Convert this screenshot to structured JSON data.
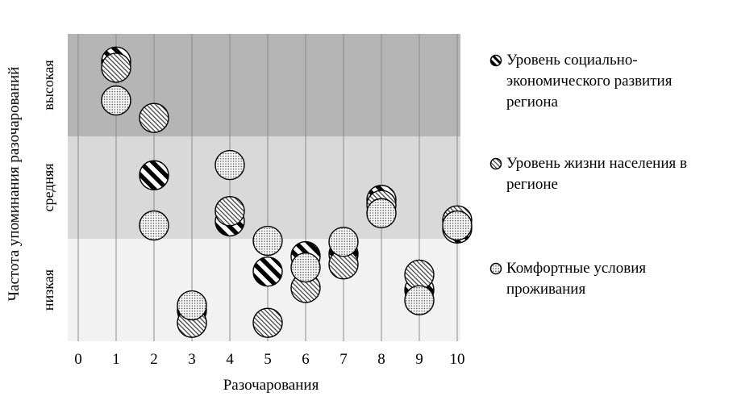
{
  "chart_data": {
    "type": "scatter",
    "xlabel": "Разочарования",
    "ylabel": "Частота упоминания разочарований",
    "xlim": [
      0,
      10
    ],
    "x_ticks": [
      "0",
      "1",
      "2",
      "3",
      "4",
      "5",
      "6",
      "7",
      "8",
      "9",
      "10"
    ],
    "bands": [
      {
        "label": "высокая",
        "range": [
          2,
          3
        ],
        "color": "#b5b5b5"
      },
      {
        "label": "средняя",
        "range": [
          1,
          2
        ],
        "color": "#d9d9d9"
      },
      {
        "label": "низкая",
        "range": [
          0,
          1
        ],
        "color": "#f2f2f2"
      }
    ],
    "grid": "vertical",
    "legend_position": "right",
    "series": [
      {
        "name": "Уровень социально-экономического развития региона",
        "pattern": "diagonal-stripes",
        "points": [
          {
            "x": 1,
            "y": 2.73
          },
          {
            "x": 2,
            "y": 1.62
          },
          {
            "x": 3,
            "y": 0.3
          },
          {
            "x": 4,
            "y": 1.17
          },
          {
            "x": 5,
            "y": 0.68
          },
          {
            "x": 6,
            "y": 0.83
          },
          {
            "x": 7,
            "y": 0.85
          },
          {
            "x": 8,
            "y": 1.38
          },
          {
            "x": 9,
            "y": 0.5
          },
          {
            "x": 10,
            "y": 1.1
          }
        ]
      },
      {
        "name": "Уровень жизни населения в регионе",
        "pattern": "fine-hatching",
        "points": [
          {
            "x": 1,
            "y": 2.67
          },
          {
            "x": 2,
            "y": 2.18
          },
          {
            "x": 3,
            "y": 0.18
          },
          {
            "x": 4,
            "y": 1.27
          },
          {
            "x": 5,
            "y": 0.18
          },
          {
            "x": 6,
            "y": 0.52
          },
          {
            "x": 7,
            "y": 0.75
          },
          {
            "x": 8,
            "y": 1.33
          },
          {
            "x": 9,
            "y": 0.65
          },
          {
            "x": 10,
            "y": 1.18
          }
        ]
      },
      {
        "name": "Комфортные условия проживания",
        "pattern": "dots",
        "points": [
          {
            "x": 1,
            "y": 2.35
          },
          {
            "x": 2,
            "y": 1.13
          },
          {
            "x": 3,
            "y": 0.35
          },
          {
            "x": 4,
            "y": 1.72
          },
          {
            "x": 5,
            "y": 0.98
          },
          {
            "x": 6,
            "y": 0.72
          },
          {
            "x": 7,
            "y": 0.97
          },
          {
            "x": 8,
            "y": 1.25
          },
          {
            "x": 9,
            "y": 0.4
          },
          {
            "x": 10,
            "y": 1.13
          }
        ]
      }
    ]
  },
  "legend": {
    "items": [
      {
        "label": "Уровень социально-экономического развития региона"
      },
      {
        "label": "Уровень жизни населения в регионе"
      },
      {
        "label": "Комфортные условия проживания"
      }
    ]
  }
}
